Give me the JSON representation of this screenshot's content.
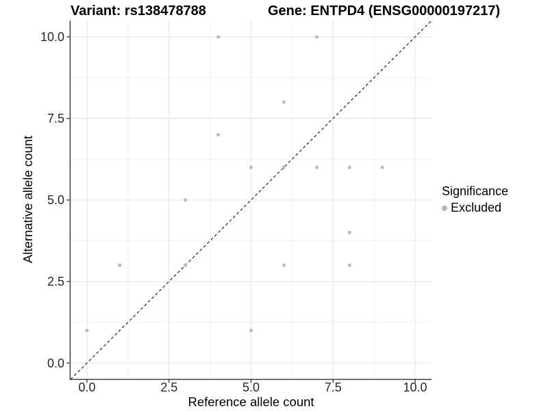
{
  "figure": {
    "title_variant": "Variant: rs138478788",
    "title_gene": "Gene: ENTPD4 (ENSG00000197217)"
  },
  "legend": {
    "title": "Significance",
    "items": [
      {
        "label": "Excluded",
        "color": "#b5b5b5"
      }
    ]
  },
  "colors": {
    "point": "#bdbdbd",
    "grid_major": "#e4e4e4",
    "grid_minor": "#efefef",
    "axis_line": "#333333",
    "tick_text": "#262626",
    "identity_line": "#111111",
    "background": "#ffffff"
  },
  "chart_data": {
    "type": "scatter",
    "title": "Variant: rs138478788 — Gene: ENTPD4 (ENSG00000197217)",
    "xlabel": "Reference allele count",
    "ylabel": "Alternative allele count",
    "xlim": [
      -0.5,
      10.5
    ],
    "ylim": [
      -0.5,
      10.5
    ],
    "x_ticks": [
      0,
      2.5,
      5,
      7.5,
      10
    ],
    "x_tick_labels": [
      "0.0",
      "2.5",
      "5.0",
      "7.5",
      "10.0"
    ],
    "y_ticks": [
      0,
      2.5,
      5,
      7.5,
      10
    ],
    "y_tick_labels": [
      "0.0",
      "2.5",
      "5.0",
      "7.5",
      "10.0"
    ],
    "minor_gridlines": [
      1.25,
      3.75,
      6.25,
      8.75
    ],
    "grid": true,
    "legend_position": "right",
    "identity_line": {
      "equation": "y = x",
      "style": "dashed",
      "color": "#111111"
    },
    "series": [
      {
        "name": "Excluded",
        "color": "#bdbdbd",
        "points": [
          [
            0,
            1
          ],
          [
            1,
            3
          ],
          [
            3,
            3
          ],
          [
            3,
            5
          ],
          [
            4,
            7
          ],
          [
            4,
            10
          ],
          [
            5,
            1
          ],
          [
            5,
            6
          ],
          [
            6,
            3
          ],
          [
            6,
            6
          ],
          [
            6,
            8
          ],
          [
            7,
            6
          ],
          [
            7,
            10
          ],
          [
            8,
            3
          ],
          [
            8,
            4
          ],
          [
            8,
            6
          ],
          [
            9,
            6
          ]
        ]
      }
    ]
  }
}
